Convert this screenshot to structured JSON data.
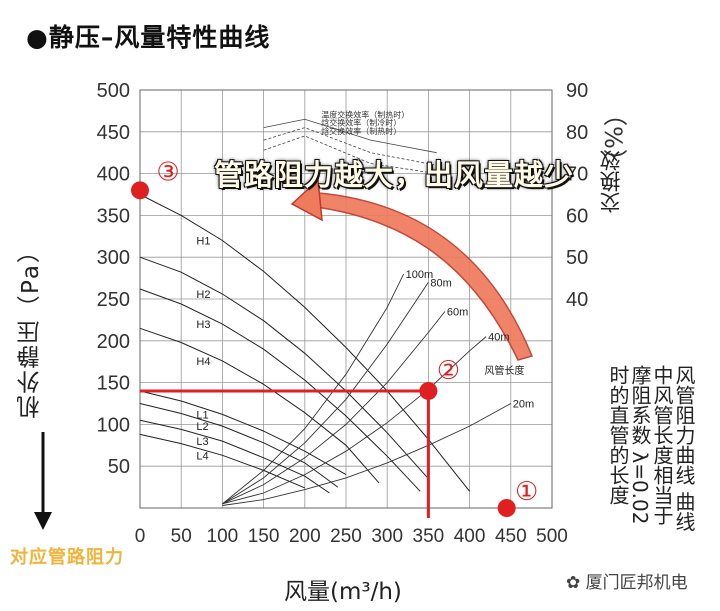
{
  "title": "●静压–风量特性曲线",
  "left_axis_label": "机外静压（Pa）",
  "right_axis_label_1": "交换效",
  "right_axis_pct": "（%）",
  "right_axis_label_2": "风管阻力曲线 曲线中风管长度相当于摩阻系数 λ=0.02时的直管的长度",
  "x_axis_label": "风量(m³/h)",
  "annotation_main": "管路阻力越大，出风量越少",
  "annotation_corner": "对应管路阻力",
  "watermark": "厦门匠邦机电",
  "colors": {
    "accent_red": "#e02020",
    "grid": "#888888",
    "curve": "#222222",
    "callout_orange": "#e8553a",
    "note_gold": "#f0b33b"
  },
  "chart_data": {
    "type": "line",
    "xlabel": "风量(m³/h)",
    "ylabel": "机外静压（Pa）",
    "xlim": [
      0,
      500
    ],
    "ylim": [
      0,
      500
    ],
    "x_ticks": [
      "0",
      "50",
      "100",
      "150",
      "200",
      "250",
      "300",
      "350",
      "400",
      "450",
      "500"
    ],
    "y_ticks": [
      "500",
      "450",
      "400",
      "350",
      "300",
      "250",
      "200",
      "150",
      "100",
      "50"
    ],
    "y2_ticks": [
      "90",
      "80",
      "70",
      "60",
      "50",
      "40"
    ],
    "grid": true,
    "fan_curves": [
      {
        "name": "H1",
        "points": [
          [
            0,
            375
          ],
          [
            50,
            350
          ],
          [
            100,
            320
          ],
          [
            150,
            283
          ],
          [
            200,
            240
          ],
          [
            250,
            192
          ],
          [
            300,
            140
          ],
          [
            350,
            82
          ],
          [
            400,
            20
          ]
        ]
      },
      {
        "name": "H2",
        "points": [
          [
            0,
            300
          ],
          [
            50,
            282
          ],
          [
            100,
            256
          ],
          [
            150,
            224
          ],
          [
            200,
            185
          ],
          [
            250,
            140
          ],
          [
            300,
            90
          ],
          [
            350,
            35
          ]
        ]
      },
      {
        "name": "H3",
        "points": [
          [
            0,
            262
          ],
          [
            50,
            244
          ],
          [
            100,
            220
          ],
          [
            150,
            190
          ],
          [
            200,
            153
          ],
          [
            250,
            110
          ],
          [
            300,
            62
          ],
          [
            340,
            20
          ]
        ]
      },
      {
        "name": "H4",
        "points": [
          [
            0,
            215
          ],
          [
            50,
            198
          ],
          [
            100,
            176
          ],
          [
            150,
            148
          ],
          [
            200,
            114
          ],
          [
            250,
            75
          ],
          [
            290,
            30
          ]
        ]
      },
      {
        "name": "L1",
        "points": [
          [
            0,
            140
          ],
          [
            50,
            128
          ],
          [
            100,
            112
          ],
          [
            150,
            92
          ],
          [
            200,
            68
          ],
          [
            250,
            40
          ]
        ]
      },
      {
        "name": "L2",
        "points": [
          [
            0,
            125
          ],
          [
            50,
            113
          ],
          [
            100,
            98
          ],
          [
            150,
            78
          ],
          [
            200,
            54
          ],
          [
            240,
            25
          ]
        ]
      },
      {
        "name": "L3",
        "points": [
          [
            0,
            105
          ],
          [
            50,
            94
          ],
          [
            100,
            80
          ],
          [
            150,
            60
          ],
          [
            200,
            38
          ],
          [
            230,
            18
          ]
        ]
      },
      {
        "name": "L4",
        "points": [
          [
            0,
            88
          ],
          [
            50,
            77
          ],
          [
            100,
            63
          ],
          [
            150,
            45
          ],
          [
            200,
            24
          ]
        ]
      }
    ],
    "duct_curves": [
      {
        "name": "100m",
        "points": [
          [
            100,
            5
          ],
          [
            150,
            45
          ],
          [
            200,
            95
          ],
          [
            250,
            160
          ],
          [
            300,
            240
          ],
          [
            320,
            280
          ]
        ]
      },
      {
        "name": "80m",
        "points": [
          [
            100,
            5
          ],
          [
            150,
            36
          ],
          [
            200,
            78
          ],
          [
            250,
            130
          ],
          [
            300,
            196
          ],
          [
            350,
            270
          ]
        ]
      },
      {
        "name": "60m",
        "points": [
          [
            100,
            5
          ],
          [
            150,
            28
          ],
          [
            200,
            60
          ],
          [
            250,
            100
          ],
          [
            300,
            150
          ],
          [
            350,
            210
          ],
          [
            370,
            235
          ]
        ]
      },
      {
        "name": "40m",
        "points": [
          [
            100,
            5
          ],
          [
            150,
            18
          ],
          [
            200,
            40
          ],
          [
            250,
            68
          ],
          [
            300,
            102
          ],
          [
            350,
            142
          ],
          [
            400,
            188
          ],
          [
            420,
            205
          ]
        ]
      },
      {
        "name": "20m",
        "points": [
          [
            100,
            3
          ],
          [
            150,
            10
          ],
          [
            200,
            22
          ],
          [
            250,
            36
          ],
          [
            300,
            54
          ],
          [
            350,
            75
          ],
          [
            400,
            98
          ],
          [
            450,
            125
          ]
        ]
      }
    ],
    "duct_length_label": "风管长度",
    "efficiency_labels": [
      "温度交换效率（制热时）",
      "焓交换效率（制冷时）",
      "焓交换效率（制热时）"
    ],
    "operating_points": [
      {
        "label": "①",
        "x": 445,
        "y": 0
      },
      {
        "label": "②",
        "x": 350,
        "y": 140
      },
      {
        "label": "③",
        "x": 0,
        "y": 380
      }
    ],
    "guide_lines": {
      "y": 140,
      "x": 350
    }
  }
}
